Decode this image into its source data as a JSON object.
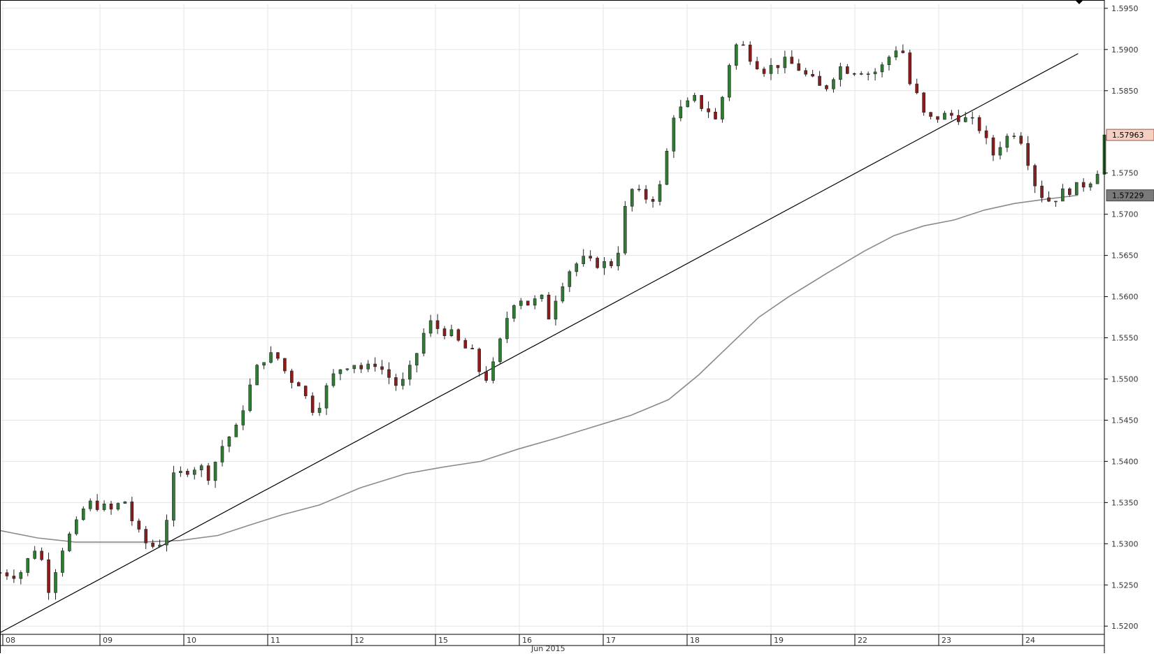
{
  "colors": {
    "background": "#ffffff",
    "grid": "#e4e4e4",
    "bull_candle": "#2e7d32",
    "bear_candle": "#8b1c1c",
    "wick": "#222222",
    "trendline": "#000000",
    "moving_average": "#8a8a8a",
    "current_price_tag_bg": "#f6cfc3",
    "ma_price_tag_bg": "#7a7a7a",
    "axis_text": "#333333"
  },
  "chart_data": {
    "type": "candlestick",
    "title": "",
    "xlabel": "Jun 2015",
    "ylabel": "",
    "ylim": [
      1.519,
      1.5955
    ],
    "grid": true,
    "y_ticks": [
      "1.5200",
      "1.5250",
      "1.5300",
      "1.5350",
      "1.5400",
      "1.5450",
      "1.5500",
      "1.5550",
      "1.5600",
      "1.5650",
      "1.5700",
      "1.5750",
      "1.5850",
      "1.5900",
      "1.5950"
    ],
    "x_ticks": [
      "08",
      "09",
      "10",
      "11",
      "12",
      "15",
      "16",
      "17",
      "18",
      "19",
      "22",
      "23",
      "24"
    ],
    "price_labels": {
      "last": "1.57963",
      "moving_average": "1.57229"
    },
    "candle_count": 160,
    "x_range_candles": [
      0,
      184
    ],
    "close_path": [
      [
        0,
        1.5265
      ],
      [
        5,
        1.5262
      ],
      [
        10,
        1.53
      ],
      [
        13,
        1.5245
      ],
      [
        17,
        1.53
      ],
      [
        20,
        1.532
      ],
      [
        23,
        1.535
      ],
      [
        27,
        1.5345
      ],
      [
        30,
        1.534
      ],
      [
        33,
        1.5355
      ],
      [
        36,
        1.5318
      ],
      [
        39,
        1.53
      ],
      [
        42,
        1.5295
      ],
      [
        44,
        1.532
      ],
      [
        46,
        1.538
      ],
      [
        50,
        1.539
      ],
      [
        53,
        1.5395
      ],
      [
        56,
        1.538
      ],
      [
        58,
        1.541
      ],
      [
        60,
        1.5425
      ],
      [
        63,
        1.544
      ],
      [
        65,
        1.547
      ],
      [
        68,
        1.551
      ],
      [
        71,
        1.553
      ],
      [
        74,
        1.5525
      ],
      [
        77,
        1.55
      ],
      [
        80,
        1.5495
      ],
      [
        82,
        1.547
      ],
      [
        84,
        1.546
      ],
      [
        86,
        1.548
      ],
      [
        88,
        1.55
      ],
      [
        91,
        1.5515
      ],
      [
        94,
        1.552
      ],
      [
        97,
        1.551
      ],
      [
        100,
        1.552
      ],
      [
        103,
        1.5505
      ],
      [
        106,
        1.549
      ],
      [
        108,
        1.55
      ],
      [
        110,
        1.552
      ],
      [
        112,
        1.5545
      ],
      [
        114,
        1.557
      ],
      [
        117,
        1.556
      ],
      [
        120,
        1.5555
      ],
      [
        123,
        1.554
      ],
      [
        126,
        1.553
      ],
      [
        128,
        1.5505
      ],
      [
        130,
        1.55
      ],
      [
        132,
        1.5525
      ],
      [
        134,
        1.556
      ],
      [
        136,
        1.559
      ],
      [
        138,
        1.56
      ],
      [
        141,
        1.559
      ],
      [
        144,
        1.56
      ],
      [
        146,
        1.5575
      ],
      [
        148,
        1.56
      ],
      [
        150,
        1.562
      ],
      [
        152,
        1.5635
      ],
      [
        155,
        1.5645
      ],
      [
        158,
        1.564
      ],
      [
        161,
        1.564
      ],
      [
        164,
        1.564
      ],
      [
        166,
        1.57
      ],
      [
        168,
        1.573
      ],
      [
        170,
        1.5725
      ],
      [
        172,
        1.572
      ],
      [
        175,
        1.572
      ],
      [
        177,
        1.576
      ],
      [
        179,
        1.582
      ],
      [
        182,
        1.583
      ],
      [
        185,
        1.584
      ],
      [
        187,
        1.583
      ],
      [
        189,
        1.5825
      ],
      [
        191,
        1.581
      ],
      [
        193,
        1.586
      ],
      [
        195,
        1.59
      ],
      [
        197,
        1.591
      ],
      [
        199,
        1.5895
      ],
      [
        201,
        1.5885
      ],
      [
        203,
        1.5875
      ],
      [
        206,
        1.588
      ],
      [
        209,
        1.5885
      ],
      [
        212,
        1.588
      ],
      [
        214,
        1.587
      ],
      [
        217,
        1.586
      ],
      [
        219,
        1.585
      ],
      [
        221,
        1.586
      ],
      [
        223,
        1.588
      ],
      [
        226,
        1.5875
      ],
      [
        229,
        1.5875
      ],
      [
        232,
        1.587
      ],
      [
        235,
        1.588
      ],
      [
        238,
        1.59
      ],
      [
        240,
        1.5905
      ],
      [
        242,
        1.586
      ],
      [
        244,
        1.5845
      ],
      [
        246,
        1.582
      ],
      [
        248,
        1.5815
      ],
      [
        251,
        1.582
      ],
      [
        254,
        1.582
      ],
      [
        257,
        1.5815
      ],
      [
        260,
        1.581
      ],
      [
        262,
        1.5795
      ],
      [
        264,
        1.577
      ],
      [
        267,
        1.579
      ],
      [
        270,
        1.58
      ],
      [
        272,
        1.579
      ],
      [
        274,
        1.576
      ],
      [
        276,
        1.573
      ],
      [
        278,
        1.572
      ],
      [
        280,
        1.5715
      ],
      [
        282,
        1.5725
      ],
      [
        285,
        1.573
      ],
      [
        288,
        1.5735
      ],
      [
        290,
        1.574
      ],
      [
        292,
        1.575
      ],
      [
        294,
        1.5796
      ]
    ],
    "moving_average": [
      [
        0,
        1.5316
      ],
      [
        10,
        1.5307
      ],
      [
        20,
        1.5302
      ],
      [
        28,
        1.5302
      ],
      [
        38,
        1.5302
      ],
      [
        48,
        1.5304
      ],
      [
        58,
        1.531
      ],
      [
        66,
        1.5322
      ],
      [
        75,
        1.5335
      ],
      [
        85,
        1.5347
      ],
      [
        96,
        1.5368
      ],
      [
        108,
        1.5385
      ],
      [
        118,
        1.5393
      ],
      [
        128,
        1.54
      ],
      [
        138,
        1.5415
      ],
      [
        148,
        1.5428
      ],
      [
        158,
        1.5442
      ],
      [
        168,
        1.5456
      ],
      [
        178,
        1.5475
      ],
      [
        186,
        1.5505
      ],
      [
        194,
        1.554
      ],
      [
        202,
        1.5575
      ],
      [
        210,
        1.56
      ],
      [
        220,
        1.5628
      ],
      [
        230,
        1.5655
      ],
      [
        238,
        1.5674
      ],
      [
        246,
        1.5686
      ],
      [
        254,
        1.5693
      ],
      [
        262,
        1.5705
      ],
      [
        270,
        1.5713
      ],
      [
        278,
        1.5718
      ],
      [
        287,
        1.5723
      ]
    ],
    "trendline": [
      [
        0,
        1.5192
      ],
      [
        287,
        1.5895
      ]
    ]
  }
}
